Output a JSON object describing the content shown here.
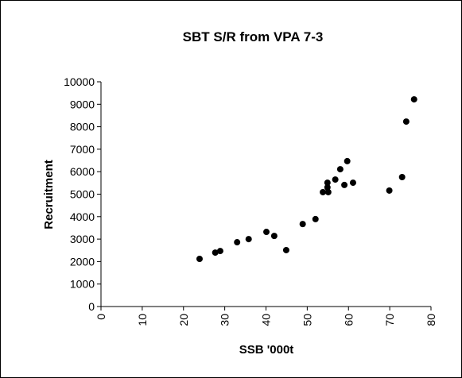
{
  "chart_data": {
    "type": "scatter",
    "title": "SBT S/R  from VPA 7-3",
    "x_label": "SSB '000t",
    "y_label": "Recruitment",
    "color": "#000000",
    "x": [
      23.9,
      27.7,
      28.9,
      33,
      35.8,
      40.1,
      42,
      44.9,
      48.9,
      52,
      53.8,
      55.1,
      54.9,
      54.9,
      56.8,
      58,
      59,
      59.7,
      61.1,
      69.9,
      73,
      74,
      75.9
    ],
    "values": [
      2120,
      2400,
      2470,
      2860,
      3000,
      3320,
      3140,
      2510,
      3670,
      3890,
      5090,
      5090,
      5510,
      5300,
      5650,
      6110,
      5410,
      6470,
      5510,
      5160,
      5760,
      8230,
      9220
    ],
    "xlim": [
      0,
      80
    ],
    "xticks": [
      0,
      10,
      20,
      30,
      40,
      50,
      60,
      70,
      80
    ],
    "ylim": [
      0,
      10000
    ],
    "yticks": [
      0,
      1000,
      2000,
      3000,
      4000,
      5000,
      6000,
      7000,
      8000,
      9000,
      10000
    ],
    "grid": false
  }
}
